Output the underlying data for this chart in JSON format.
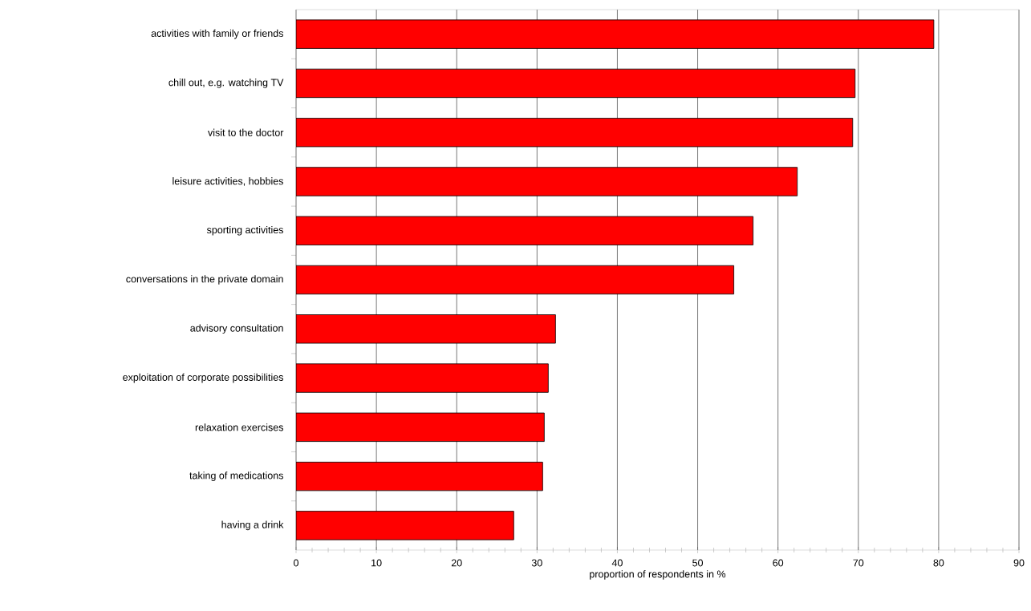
{
  "chart_data": {
    "type": "bar",
    "orientation": "horizontal",
    "categories": [
      "activities with family or friends",
      "chill out, e.g. watching TV",
      "visit to the doctor",
      "leisure activities, hobbies",
      "sporting activities",
      "conversations in the private domain",
      "advisory consultation",
      "exploitation of corporate possibilities",
      "relaxation exercises",
      "taking of medications",
      "having a drink"
    ],
    "values": [
      79.4,
      69.6,
      69.3,
      62.4,
      56.9,
      54.5,
      32.3,
      31.4,
      30.9,
      30.7,
      27.1
    ],
    "color": "#ff0000",
    "xlabel": "proportion of respondents in %",
    "xlim": [
      0,
      90
    ],
    "xticks": [
      0,
      10,
      20,
      30,
      40,
      50,
      60,
      70,
      80,
      90
    ],
    "grid": "x"
  }
}
